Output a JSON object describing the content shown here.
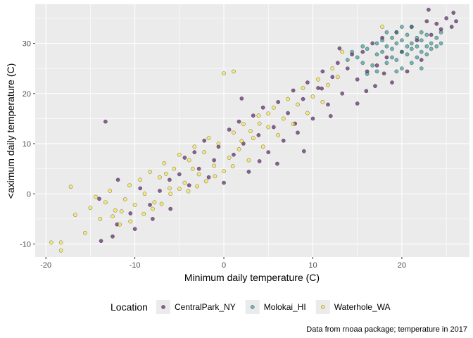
{
  "chart_data": {
    "type": "scatter",
    "title": "",
    "xlabel": "Minimum daily temperature (C)",
    "ylabel": "<aximum daily temperature (C)",
    "xlim": [
      -21.2,
      27.6
    ],
    "ylim": [
      -12.6,
      37.8
    ],
    "x_ticks": [
      -20,
      -10,
      0,
      10,
      20
    ],
    "y_ticks": [
      -10,
      0,
      10,
      20,
      30
    ],
    "x_tick_labels": [
      "-20",
      "-10",
      "0",
      "10",
      "20"
    ],
    "y_tick_labels": [
      "-10",
      "0",
      "10",
      "20",
      "30"
    ],
    "grid": true,
    "legend": {
      "title": "Location",
      "position": "bottom"
    },
    "caption": "Data from rnoaa package; temperature in 2017",
    "series": [
      {
        "name": "CentralPark_NY",
        "color": "#440154",
        "points": [
          [
            -13.3,
            14.4
          ],
          [
            -11.9,
            2.8
          ],
          [
            -13.8,
            -9.4
          ],
          [
            -12.0,
            -6.1
          ],
          [
            -10.5,
            -3.9
          ],
          [
            -9.4,
            1.1
          ],
          [
            -8.3,
            -2.2
          ],
          [
            -7.2,
            0.6
          ],
          [
            -6.1,
            2.8
          ],
          [
            -5.0,
            3.9
          ],
          [
            -4.4,
            7.2
          ],
          [
            -3.9,
            1.7
          ],
          [
            -3.3,
            8.3
          ],
          [
            -2.8,
            5.0
          ],
          [
            -2.2,
            10.6
          ],
          [
            -1.7,
            3.3
          ],
          [
            -1.1,
            6.7
          ],
          [
            -0.6,
            9.4
          ],
          [
            0.0,
            2.2
          ],
          [
            0.6,
            12.8
          ],
          [
            1.1,
            7.8
          ],
          [
            1.7,
            14.4
          ],
          [
            2.2,
            10.0
          ],
          [
            2.8,
            4.4
          ],
          [
            3.3,
            15.6
          ],
          [
            3.9,
            11.7
          ],
          [
            4.4,
            17.2
          ],
          [
            5.0,
            8.3
          ],
          [
            5.6,
            13.3
          ],
          [
            6.1,
            18.3
          ],
          [
            6.7,
            10.6
          ],
          [
            7.2,
            16.1
          ],
          [
            7.8,
            20.6
          ],
          [
            8.3,
            12.2
          ],
          [
            8.9,
            18.9
          ],
          [
            9.4,
            22.2
          ],
          [
            10.0,
            15.0
          ],
          [
            10.6,
            21.1
          ],
          [
            11.1,
            24.4
          ],
          [
            11.7,
            17.8
          ],
          [
            12.2,
            23.3
          ],
          [
            12.8,
            26.1
          ],
          [
            13.3,
            20.0
          ],
          [
            13.9,
            25.0
          ],
          [
            14.4,
            27.8
          ],
          [
            15.0,
            22.8
          ],
          [
            15.6,
            28.3
          ],
          [
            16.1,
            24.4
          ],
          [
            16.7,
            30.0
          ],
          [
            17.2,
            25.6
          ],
          [
            17.8,
            31.1
          ],
          [
            18.3,
            27.2
          ],
          [
            18.9,
            22.2
          ],
          [
            19.4,
            32.2
          ],
          [
            20.0,
            28.3
          ],
          [
            20.6,
            24.4
          ],
          [
            21.1,
            33.3
          ],
          [
            21.7,
            30.6
          ],
          [
            22.2,
            26.7
          ],
          [
            22.8,
            34.4
          ],
          [
            23.3,
            31.7
          ],
          [
            23.9,
            33.9
          ],
          [
            24.4,
            32.8
          ],
          [
            25.0,
            35.0
          ],
          [
            25.6,
            33.3
          ],
          [
            26.1,
            34.4
          ],
          [
            25.8,
            36.1
          ],
          [
            23.0,
            36.7
          ],
          [
            11.0,
            21.0
          ],
          [
            13.0,
            29.0
          ],
          [
            15.0,
            18.0
          ],
          [
            16.0,
            20.5
          ],
          [
            17.0,
            21.5
          ],
          [
            18.0,
            24.0
          ],
          [
            8.0,
            14.0
          ],
          [
            6.0,
            6.0
          ],
          [
            4.0,
            6.5
          ],
          [
            -10.0,
            -7.0
          ],
          [
            -8.0,
            -5.0
          ],
          [
            -6.0,
            -3.0
          ],
          [
            -14.0,
            -1.0
          ],
          [
            -12.5,
            -8.5
          ],
          [
            2.0,
            19.0
          ],
          [
            9.0,
            8.5
          ],
          [
            12.0,
            15.5
          ]
        ]
      },
      {
        "name": "Molokai_HI",
        "color": "#21908C",
        "points": [
          [
            13.9,
            26.7
          ],
          [
            14.4,
            28.3
          ],
          [
            15.0,
            27.2
          ],
          [
            15.6,
            29.4
          ],
          [
            16.1,
            28.9
          ],
          [
            16.7,
            25.6
          ],
          [
            17.2,
            30.0
          ],
          [
            17.2,
            27.8
          ],
          [
            17.8,
            28.3
          ],
          [
            17.8,
            30.6
          ],
          [
            18.3,
            26.1
          ],
          [
            18.3,
            29.4
          ],
          [
            18.9,
            28.9
          ],
          [
            18.9,
            31.1
          ],
          [
            18.9,
            27.2
          ],
          [
            19.4,
            30.0
          ],
          [
            19.4,
            26.7
          ],
          [
            19.4,
            32.2
          ],
          [
            20.0,
            28.3
          ],
          [
            20.0,
            30.6
          ],
          [
            20.0,
            25.0
          ],
          [
            20.0,
            33.3
          ],
          [
            20.6,
            29.4
          ],
          [
            20.6,
            27.8
          ],
          [
            20.6,
            31.7
          ],
          [
            21.1,
            28.9
          ],
          [
            21.1,
            30.0
          ],
          [
            21.1,
            26.1
          ],
          [
            21.7,
            29.4
          ],
          [
            21.7,
            31.1
          ],
          [
            21.7,
            27.2
          ],
          [
            22.2,
            28.3
          ],
          [
            22.2,
            30.6
          ],
          [
            22.2,
            32.2
          ],
          [
            22.8,
            29.4
          ],
          [
            22.8,
            27.8
          ],
          [
            22.8,
            31.7
          ],
          [
            23.3,
            30.0
          ],
          [
            23.3,
            28.9
          ],
          [
            23.9,
            31.1
          ],
          [
            23.9,
            29.4
          ],
          [
            24.4,
            30.0
          ],
          [
            16.1,
            23.9
          ],
          [
            17.2,
            24.4
          ],
          [
            15.6,
            26.1
          ],
          [
            19.4,
            24.4
          ],
          [
            21.1,
            33.3
          ],
          [
            18.3,
            32.2
          ],
          [
            24.4,
            32.2
          ],
          [
            22.2,
            25.0
          ]
        ]
      },
      {
        "name": "Waterhole_WA",
        "color": "#FDE725",
        "points": [
          [
            -19.4,
            -9.7
          ],
          [
            -18.3,
            -9.7
          ],
          [
            -18.3,
            -11.3
          ],
          [
            -17.2,
            1.4
          ],
          [
            -16.7,
            -4.2
          ],
          [
            -15.6,
            -7.8
          ],
          [
            -15.0,
            -2.8
          ],
          [
            -14.4,
            -0.6
          ],
          [
            -13.9,
            -5.0
          ],
          [
            -13.3,
            -1.7
          ],
          [
            -12.8,
            0.6
          ],
          [
            -12.2,
            -3.3
          ],
          [
            -11.7,
            -6.1
          ],
          [
            -11.1,
            -1.1
          ],
          [
            -10.6,
            1.7
          ],
          [
            -10.0,
            -2.2
          ],
          [
            -9.4,
            2.8
          ],
          [
            -8.9,
            0.0
          ],
          [
            -8.3,
            4.4
          ],
          [
            -7.8,
            -1.7
          ],
          [
            -7.2,
            3.3
          ],
          [
            -6.7,
            6.1
          ],
          [
            -6.1,
            1.1
          ],
          [
            -5.6,
            5.0
          ],
          [
            -5.0,
            7.8
          ],
          [
            -4.4,
            2.2
          ],
          [
            -3.9,
            6.7
          ],
          [
            -3.3,
            9.4
          ],
          [
            -2.8,
            3.9
          ],
          [
            -2.2,
            8.3
          ],
          [
            -1.7,
            11.1
          ],
          [
            -1.1,
            5.6
          ],
          [
            -0.6,
            10.0
          ],
          [
            0.0,
            24.0
          ],
          [
            1.1,
            24.4
          ],
          [
            0.6,
            7.2
          ],
          [
            1.1,
            12.2
          ],
          [
            1.7,
            8.9
          ],
          [
            2.2,
            13.9
          ],
          [
            2.8,
            6.7
          ],
          [
            3.3,
            11.1
          ],
          [
            3.9,
            15.6
          ],
          [
            4.4,
            9.4
          ],
          [
            5.0,
            13.3
          ],
          [
            5.6,
            17.2
          ],
          [
            6.1,
            11.7
          ],
          [
            6.7,
            15.0
          ],
          [
            7.2,
            18.9
          ],
          [
            7.8,
            13.9
          ],
          [
            8.3,
            17.8
          ],
          [
            8.9,
            21.1
          ],
          [
            9.4,
            16.1
          ],
          [
            10.0,
            19.4
          ],
          [
            10.6,
            22.8
          ],
          [
            11.1,
            18.3
          ],
          [
            11.7,
            21.7
          ],
          [
            12.2,
            25.0
          ],
          [
            12.8,
            23.3
          ],
          [
            13.3,
            28.3
          ],
          [
            17.8,
            33.3
          ],
          [
            -4.0,
            0.5
          ],
          [
            -3.0,
            1.5
          ],
          [
            -2.0,
            2.5
          ],
          [
            -1.0,
            3.5
          ],
          [
            0.0,
            4.5
          ],
          [
            1.0,
            5.5
          ],
          [
            2.0,
            10.5
          ],
          [
            3.0,
            12.5
          ],
          [
            4.0,
            14.0
          ],
          [
            5.0,
            16.0
          ],
          [
            -9.0,
            -4.0
          ],
          [
            -8.0,
            -3.0
          ],
          [
            -7.0,
            -2.0
          ],
          [
            -6.0,
            0.0
          ],
          [
            -5.0,
            1.0
          ],
          [
            -10.5,
            -5.5
          ],
          [
            -11.5,
            -3.5
          ],
          [
            -12.5,
            -4.5
          ],
          [
            -6.5,
            4.0
          ],
          [
            -3.5,
            5.0
          ]
        ]
      }
    ]
  }
}
